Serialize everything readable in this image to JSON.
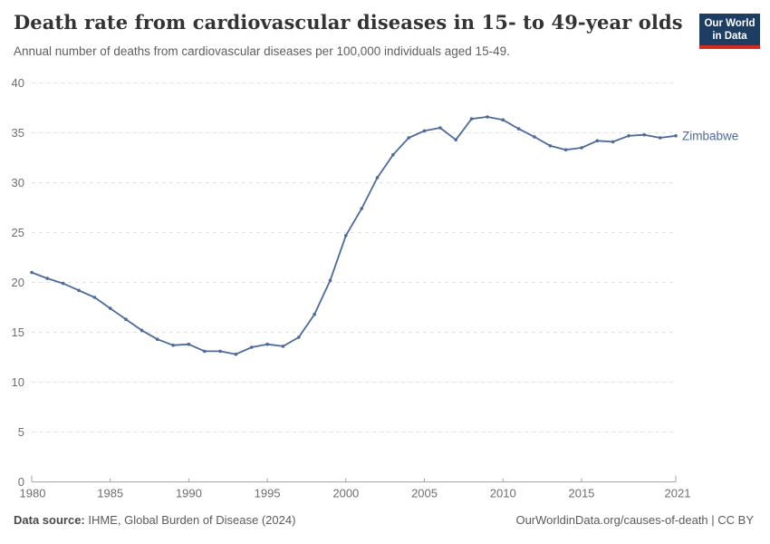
{
  "header": {
    "title": "Death rate from cardiovascular diseases in 15- to 49-year olds",
    "subtitle": "Annual number of deaths from cardiovascular diseases per 100,000 individuals aged 15-49.",
    "logo": {
      "line1": "Our World",
      "line2": "in Data"
    }
  },
  "chart_data": {
    "type": "line",
    "title": "Death rate from cardiovascular diseases in 15- to 49-year olds",
    "xlabel": "",
    "ylabel": "",
    "grid": "horizontal-dashed",
    "legend_position": "end-of-line",
    "series_label": "Zimbabwe",
    "x": [
      1980,
      1981,
      1982,
      1983,
      1984,
      1985,
      1986,
      1987,
      1988,
      1989,
      1990,
      1991,
      1992,
      1993,
      1994,
      1995,
      1996,
      1997,
      1998,
      1999,
      2000,
      2001,
      2002,
      2003,
      2004,
      2005,
      2006,
      2007,
      2008,
      2009,
      2010,
      2011,
      2012,
      2013,
      2014,
      2015,
      2016,
      2017,
      2018,
      2019,
      2020,
      2021
    ],
    "values": [
      21.0,
      20.4,
      19.9,
      19.2,
      18.5,
      17.4,
      16.3,
      15.2,
      14.3,
      13.7,
      13.8,
      13.1,
      13.1,
      12.8,
      13.5,
      13.8,
      13.6,
      14.5,
      16.8,
      20.2,
      24.7,
      27.4,
      30.5,
      32.8,
      34.5,
      35.2,
      35.5,
      34.3,
      36.4,
      36.6,
      36.3,
      35.4,
      34.6,
      33.7,
      33.3,
      33.5,
      34.2,
      34.1,
      34.7,
      34.8,
      34.5,
      34.7
    ],
    "xticks": [
      1980,
      1985,
      1990,
      1995,
      2000,
      2005,
      2010,
      2015,
      2021
    ],
    "yticks": [
      0,
      5,
      10,
      15,
      20,
      25,
      30,
      35,
      40
    ],
    "xlim": [
      1980,
      2021
    ],
    "ylim": [
      0,
      40
    ],
    "line_color": "#4C6A9C"
  },
  "footer": {
    "source_label": "Data source:",
    "source_value": "IHME, Global Burden of Disease (2024)",
    "credit": "OurWorldinData.org/causes-of-death | CC BY"
  },
  "colors": {
    "line": "#4C6A9C",
    "series_label_text": "#4C6A9C",
    "logo_navy": "#1d3d63",
    "logo_red": "#d42b21",
    "grid": "#e2e2e2",
    "axis": "#a5a5a5",
    "tick_text": "#6e6e6e"
  }
}
